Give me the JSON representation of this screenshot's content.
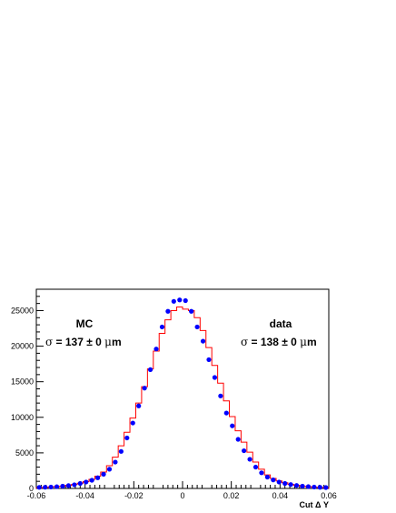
{
  "chart_data": {
    "type": "scatter",
    "xlabel": "Cut Δ Y",
    "xlim": [
      -0.06,
      0.06
    ],
    "ylim": [
      0,
      28000
    ],
    "x_ticks": [
      -0.06,
      -0.04,
      -0.02,
      0,
      0.02,
      0.04,
      0.06
    ],
    "x_tick_labels": [
      "-0.06",
      "-0.04",
      "-0.02",
      "0",
      "0.02",
      "0.04",
      "0.06"
    ],
    "y_ticks": [
      0,
      5000,
      10000,
      15000,
      20000,
      25000
    ],
    "y_tick_labels": [
      "0",
      "5000",
      "10000",
      "15000",
      "20000",
      "25000"
    ],
    "bin_width": 0.0024,
    "series": [
      {
        "style": "histogram",
        "color": "#ff0000",
        "x": [
          -0.0588,
          -0.0564,
          -0.054,
          -0.0516,
          -0.0492,
          -0.0468,
          -0.0444,
          -0.042,
          -0.0396,
          -0.0372,
          -0.0348,
          -0.0324,
          -0.03,
          -0.0276,
          -0.0252,
          -0.0228,
          -0.0204,
          -0.018,
          -0.0156,
          -0.0132,
          -0.0108,
          -0.0084,
          -0.006,
          -0.0036,
          -0.0012,
          0.0012,
          0.0036,
          0.006,
          0.0084,
          0.0108,
          0.0132,
          0.0156,
          0.018,
          0.0204,
          0.0228,
          0.0252,
          0.0276,
          0.03,
          0.0324,
          0.0348,
          0.0372,
          0.0396,
          0.042,
          0.0444,
          0.0468,
          0.0492,
          0.0516,
          0.054,
          0.0564,
          0.0588
        ],
        "values": [
          100,
          150,
          200,
          250,
          320,
          420,
          560,
          740,
          960,
          1280,
          1720,
          2300,
          3200,
          4400,
          6000,
          7900,
          9900,
          12000,
          14300,
          16800,
          19300,
          21800,
          23700,
          25000,
          25500,
          25200,
          25000,
          24000,
          22200,
          19800,
          17300,
          14800,
          12300,
          10100,
          8100,
          6500,
          5100,
          3700,
          2700,
          1900,
          1400,
          1050,
          800,
          580,
          430,
          320,
          250,
          180,
          140,
          100
        ]
      },
      {
        "style": "markers",
        "color": "#0000ff",
        "x": [
          -0.0588,
          -0.0564,
          -0.054,
          -0.0516,
          -0.0492,
          -0.0468,
          -0.0444,
          -0.042,
          -0.0396,
          -0.0372,
          -0.0348,
          -0.0324,
          -0.03,
          -0.0276,
          -0.0252,
          -0.0228,
          -0.0204,
          -0.018,
          -0.0156,
          -0.0132,
          -0.0108,
          -0.0084,
          -0.006,
          -0.0036,
          -0.0012,
          0.0012,
          0.0036,
          0.006,
          0.0084,
          0.0108,
          0.0132,
          0.0156,
          0.018,
          0.0204,
          0.0228,
          0.0252,
          0.0276,
          0.03,
          0.0324,
          0.0348,
          0.0372,
          0.0396,
          0.042,
          0.0444,
          0.0468,
          0.0492,
          0.0516,
          0.054,
          0.0564,
          0.0588
        ],
        "values": [
          150,
          170,
          200,
          250,
          320,
          400,
          520,
          700,
          900,
          1150,
          1500,
          2000,
          2700,
          3700,
          5200,
          7100,
          9200,
          11600,
          14100,
          16700,
          19600,
          22700,
          24900,
          26300,
          26500,
          26400,
          24900,
          22700,
          20700,
          18100,
          15600,
          13000,
          10600,
          8800,
          6900,
          5300,
          4100,
          3000,
          2200,
          1600,
          1200,
          900,
          700,
          550,
          420,
          330,
          260,
          200,
          160,
          130
        ]
      }
    ],
    "annotations": {
      "mc_label": "MC",
      "mc_sigma_symbol": "σ",
      "mc_sigma_text": " = 137 ± 0 ",
      "mc_unit_symbol": "μ",
      "mc_unit_text": "m",
      "data_label": "data",
      "data_sigma_symbol": "σ",
      "data_sigma_text": " = 138 ± 0 ",
      "data_unit_symbol": "μ",
      "data_unit_text": "m"
    }
  }
}
